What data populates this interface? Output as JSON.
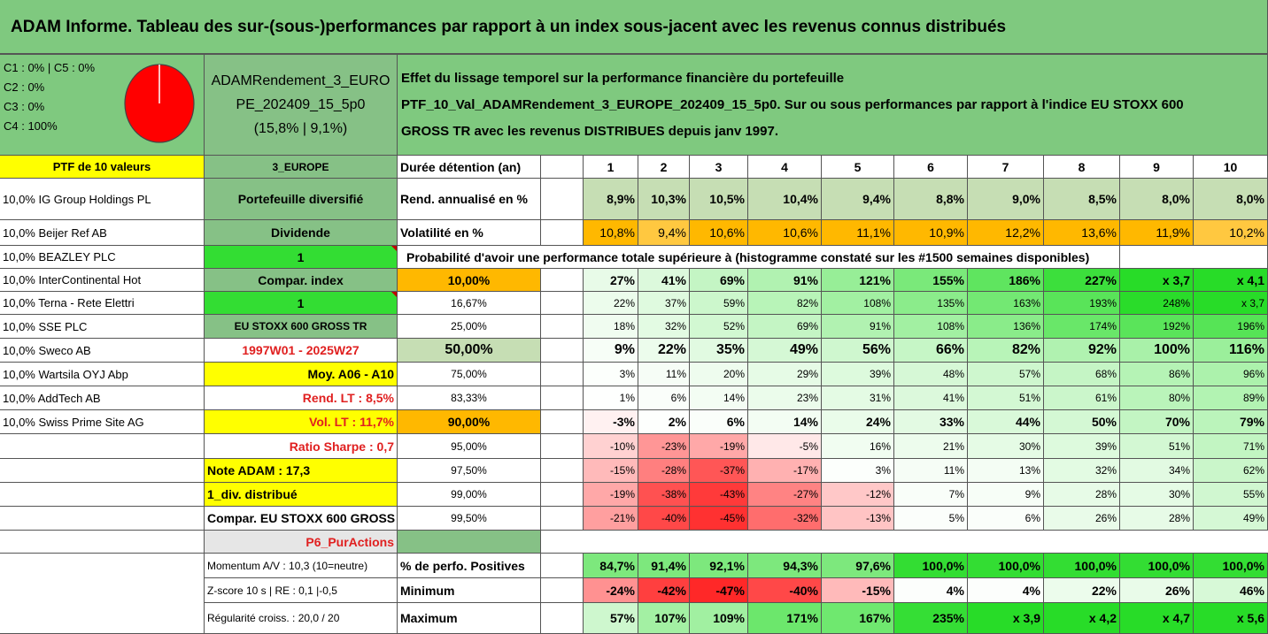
{
  "title": "ADAM Informe. Tableau des sur-(sous-)performances par rapport à un index sous-jacent avec les revenus connus distribués",
  "classes": [
    "C1 : 0% | C5 : 0%",
    "C2 : 0%",
    "C3 : 0%",
    "C4 : 100%"
  ],
  "pie": {
    "color": "#ff0000",
    "share_C4": 100
  },
  "fund": {
    "line1": "ADAMRendement_3_EURO",
    "line2": "PE_202409_15_5p0",
    "line3": "(15,8% | 9,1%)"
  },
  "description": [
    "Effet du lissage temporel sur la performance financière du portefeuille",
    "PTF_10_Val_ADAMRendement_3_EUROPE_202409_15_5p0. Sur ou sous performances par rapport à l'indice EU STOXX 600",
    "GROSS TR avec les revenus DISTRIBUES depuis janv 1997."
  ],
  "ptf_label": "PTF de 10 valeurs",
  "holdings": [
    "10,0% IG Group Holdings PL",
    "10,0% Beijer Ref AB",
    "10,0% BEAZLEY PLC",
    "10,0% InterContinental Hot",
    "10,0% Terna - Rete Elettri",
    "10,0% SSE PLC",
    "10,0% Sweco AB",
    "10,0% Wartsila OYJ Abp",
    "10,0% AddTech AB",
    "10,0% Swiss Prime Site AG"
  ],
  "info": [
    "3_EUROPE",
    "Portefeuille diversifié",
    "Dividende",
    "1",
    "Compar. index",
    "1",
    "EU STOXX 600 GROSS TR",
    "1997W01 - 2025W27",
    "Moy. A06 - A10",
    "Rend. LT : 8,5%",
    "Vol. LT : 11,7%",
    "Ratio Sharpe : 0,7",
    "Note ADAM : 17,3",
    "1_div. distribué",
    "Compar. EU STOXX 600 GROSS TR",
    "P6_PurActions",
    "Momentum A/V : 10,3 (10=neutre)",
    "Z-score 10 s | RE : 0,1 |-0,5",
    "Régularité croiss. : 20,0 / 20"
  ],
  "labels": {
    "duration": "Durée détention (an)",
    "rend": "Rend. annualisé en %",
    "vol": "Volatilité en %",
    "proba": "Probabilité d'avoir une performance totale supérieure à (histogramme constaté sur les #1500 semaines disponibles)",
    "positives": "% de perfo. Positives",
    "minimum": "Minimum",
    "maximum": "Maximum"
  },
  "years": [
    "1",
    "2",
    "3",
    "4",
    "5",
    "6",
    "7",
    "8",
    "9",
    "10"
  ],
  "rend": [
    "8,9%",
    "10,3%",
    "10,5%",
    "10,4%",
    "9,4%",
    "8,8%",
    "9,0%",
    "8,5%",
    "8,0%",
    "8,0%"
  ],
  "vol": [
    "10,8%",
    "9,4%",
    "10,6%",
    "10,6%",
    "11,1%",
    "10,9%",
    "12,2%",
    "13,6%",
    "11,9%",
    "10,2%"
  ],
  "vol_hi": [
    1,
    0,
    1,
    1,
    1,
    1,
    1,
    1,
    1,
    0
  ],
  "proba_rows": [
    {
      "p": "10,00%",
      "v": [
        "27%",
        "41%",
        "69%",
        "91%",
        "121%",
        "155%",
        "186%",
        "227%",
        "x 3,7",
        "x 4,1"
      ],
      "bold": true
    },
    {
      "p": "16,67%",
      "v": [
        "22%",
        "37%",
        "59%",
        "82%",
        "108%",
        "135%",
        "163%",
        "193%",
        "248%",
        "x 3,7"
      ],
      "bold": false
    },
    {
      "p": "25,00%",
      "v": [
        "18%",
        "32%",
        "52%",
        "69%",
        "91%",
        "108%",
        "136%",
        "174%",
        "192%",
        "196%"
      ],
      "bold": false
    },
    {
      "p": "50,00%",
      "v": [
        "9%",
        "22%",
        "35%",
        "49%",
        "56%",
        "66%",
        "82%",
        "92%",
        "100%",
        "116%"
      ],
      "bold": true
    },
    {
      "p": "75,00%",
      "v": [
        "3%",
        "11%",
        "20%",
        "29%",
        "39%",
        "48%",
        "57%",
        "68%",
        "86%",
        "96%"
      ],
      "bold": false
    },
    {
      "p": "83,33%",
      "v": [
        "1%",
        "6%",
        "14%",
        "23%",
        "31%",
        "41%",
        "51%",
        "61%",
        "80%",
        "89%"
      ],
      "bold": false
    },
    {
      "p": "90,00%",
      "v": [
        "-3%",
        "2%",
        "6%",
        "14%",
        "24%",
        "33%",
        "44%",
        "50%",
        "70%",
        "79%"
      ],
      "bold": true
    },
    {
      "p": "95,00%",
      "v": [
        "-10%",
        "-23%",
        "-19%",
        "-5%",
        "16%",
        "21%",
        "30%",
        "39%",
        "51%",
        "71%"
      ],
      "bold": false
    },
    {
      "p": "97,50%",
      "v": [
        "-15%",
        "-28%",
        "-37%",
        "-17%",
        "3%",
        "11%",
        "13%",
        "32%",
        "34%",
        "62%"
      ],
      "bold": false
    },
    {
      "p": "99,00%",
      "v": [
        "-19%",
        "-38%",
        "-43%",
        "-27%",
        "-12%",
        "7%",
        "9%",
        "28%",
        "30%",
        "55%"
      ],
      "bold": false
    },
    {
      "p": "99,50%",
      "v": [
        "-21%",
        "-40%",
        "-45%",
        "-32%",
        "-13%",
        "5%",
        "6%",
        "26%",
        "28%",
        "49%"
      ],
      "bold": false
    }
  ],
  "positives": [
    "84,7%",
    "91,4%",
    "92,1%",
    "94,3%",
    "97,6%",
    "100,0%",
    "100,0%",
    "100,0%",
    "100,0%",
    "100,0%"
  ],
  "minimum": [
    "-24%",
    "-42%",
    "-47%",
    "-40%",
    "-15%",
    "4%",
    "4%",
    "22%",
    "26%",
    "46%"
  ],
  "maximum": [
    "57%",
    "107%",
    "109%",
    "171%",
    "167%",
    "235%",
    "x 3,9",
    "x 4,2",
    "x 4,7",
    "x 5,6"
  ],
  "colors": {
    "header_green": "#7fc97f",
    "info_green": "#86c186",
    "bright_green": "#33dd33",
    "yellow": "#ffff00",
    "orange": "#ffb800",
    "sage": "#c6deb4",
    "red_text": "#e02020"
  }
}
